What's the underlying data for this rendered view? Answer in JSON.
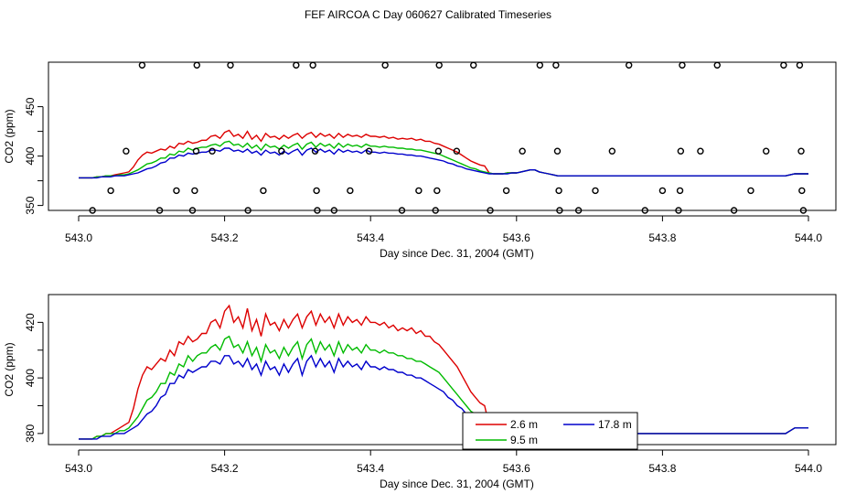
{
  "title": "FEF AIRCOA C  Day 060627  Calibrated Timeseries",
  "colors": {
    "series_2_6": "#dd0000",
    "series_9_5": "#00bb00",
    "series_17_8": "#0000cc",
    "axis": "#000000"
  },
  "chart_data": [
    {
      "type": "line",
      "title": "FEF AIRCOA C  Day 060627  Calibrated Timeseries",
      "xlabel": "Day since Dec. 31, 2004 (GMT)",
      "ylabel": "CO2 (ppm)",
      "xlim": [
        543.0,
        544.0
      ],
      "ylim": [
        345,
        495
      ],
      "xticks": [
        "543.0",
        "543.2",
        "543.4",
        "543.6",
        "543.8",
        "544.0"
      ],
      "yticks": [
        "350",
        "400",
        "450"
      ],
      "grid": false,
      "series": [
        {
          "name": "2.6 m",
          "color": "#dd0000",
          "x_start": 543.0,
          "x_step": 0.00625,
          "values": [
            378,
            378,
            378,
            378,
            379,
            379,
            380,
            380,
            381,
            382,
            383,
            384,
            389,
            396,
            401,
            404,
            403,
            405,
            407,
            406,
            410,
            408,
            413,
            412,
            415,
            413,
            414,
            416,
            416,
            420,
            421,
            418,
            424,
            426,
            420,
            422,
            418,
            425,
            417,
            421,
            415,
            423,
            419,
            420,
            417,
            421,
            418,
            421,
            423,
            418,
            422,
            424,
            419,
            423,
            420,
            422,
            418,
            423,
            419,
            422,
            420,
            421,
            419,
            422,
            420,
            420,
            419,
            420,
            418,
            419,
            417,
            418,
            417,
            418,
            416,
            417,
            415,
            415,
            413,
            412,
            410,
            408,
            406,
            404,
            401,
            398,
            395,
            393,
            391,
            390,
            383,
            382,
            382,
            382,
            383,
            383,
            383,
            384,
            385,
            386,
            386,
            384,
            383,
            382,
            381,
            380,
            380,
            380,
            380,
            380,
            380,
            380,
            380,
            380,
            380,
            380,
            380,
            380,
            380,
            380,
            380,
            380,
            380,
            380,
            380,
            380,
            380,
            380,
            380,
            380,
            380,
            380,
            380,
            380,
            380,
            380,
            380,
            380,
            380,
            380,
            380,
            380,
            380,
            380,
            380,
            380,
            380,
            380,
            380,
            380,
            380,
            380,
            380,
            380,
            380,
            380,
            381,
            382,
            382,
            382,
            382
          ]
        },
        {
          "name": "9.5 m",
          "color": "#00bb00",
          "x_start": 543.0,
          "x_step": 0.00625,
          "values": [
            378,
            378,
            378,
            378,
            379,
            379,
            380,
            380,
            380,
            381,
            381,
            382,
            384,
            386,
            389,
            392,
            393,
            395,
            398,
            398,
            402,
            401,
            405,
            404,
            408,
            406,
            408,
            409,
            409,
            411,
            412,
            410,
            414,
            415,
            411,
            412,
            409,
            413,
            408,
            411,
            406,
            412,
            409,
            410,
            407,
            411,
            408,
            411,
            413,
            407,
            412,
            414,
            409,
            413,
            410,
            412,
            408,
            413,
            409,
            412,
            410,
            411,
            409,
            412,
            410,
            410,
            409,
            410,
            409,
            409,
            408,
            408,
            407,
            407,
            406,
            406,
            405,
            404,
            403,
            402,
            400,
            398,
            396,
            394,
            392,
            390,
            388,
            387,
            385,
            384,
            383,
            382,
            382,
            382,
            383,
            383,
            383,
            384,
            385,
            386,
            386,
            384,
            383,
            382,
            381,
            380,
            380,
            380,
            380,
            380,
            380,
            380,
            380,
            380,
            380,
            380,
            380,
            380,
            380,
            380,
            380,
            380,
            380,
            380,
            380,
            380,
            380,
            380,
            380,
            380,
            380,
            380,
            380,
            380,
            380,
            380,
            380,
            380,
            380,
            380,
            380,
            380,
            380,
            380,
            380,
            380,
            380,
            380,
            380,
            380,
            380,
            380,
            380,
            380,
            380,
            380,
            381,
            382,
            382,
            382,
            382
          ]
        },
        {
          "name": "17.8 m",
          "color": "#0000cc",
          "x_start": 543.0,
          "x_step": 0.00625,
          "values": [
            378,
            378,
            378,
            378,
            378,
            379,
            379,
            379,
            380,
            380,
            380,
            381,
            382,
            383,
            385,
            387,
            388,
            390,
            393,
            394,
            398,
            398,
            401,
            400,
            403,
            402,
            403,
            404,
            404,
            406,
            406,
            405,
            408,
            408,
            405,
            406,
            404,
            407,
            403,
            405,
            401,
            406,
            403,
            404,
            401,
            405,
            402,
            405,
            407,
            401,
            406,
            408,
            404,
            407,
            404,
            406,
            402,
            407,
            404,
            406,
            404,
            405,
            403,
            406,
            404,
            404,
            403,
            404,
            403,
            403,
            402,
            402,
            401,
            401,
            400,
            400,
            399,
            398,
            397,
            396,
            395,
            393,
            392,
            390,
            389,
            387,
            386,
            385,
            384,
            383,
            382,
            382,
            382,
            382,
            382,
            383,
            383,
            384,
            385,
            386,
            386,
            384,
            383,
            382,
            381,
            380,
            380,
            380,
            380,
            380,
            380,
            380,
            380,
            380,
            380,
            380,
            380,
            380,
            380,
            380,
            380,
            380,
            380,
            380,
            380,
            380,
            380,
            380,
            380,
            380,
            380,
            380,
            380,
            380,
            380,
            380,
            380,
            380,
            380,
            380,
            380,
            380,
            380,
            380,
            380,
            380,
            380,
            380,
            380,
            380,
            380,
            380,
            380,
            380,
            380,
            380,
            381,
            382,
            382,
            382,
            382
          ]
        },
        {
          "name": "calibration points",
          "type": "scatter",
          "color": "#000000",
          "points": [
            [
              543.019,
              345
            ],
            [
              543.044,
              365
            ],
            [
              543.065,
              405
            ],
            [
              543.087,
              492
            ],
            [
              543.111,
              345
            ],
            [
              543.134,
              365
            ],
            [
              543.156,
              345
            ],
            [
              543.159,
              365
            ],
            [
              543.161,
              405
            ],
            [
              543.162,
              492
            ],
            [
              543.183,
              405
            ],
            [
              543.208,
              492
            ],
            [
              543.232,
              345
            ],
            [
              543.253,
              365
            ],
            [
              543.278,
              405
            ],
            [
              543.298,
              492
            ],
            [
              543.321,
              492
            ],
            [
              543.324,
              405
            ],
            [
              543.326,
              365
            ],
            [
              543.327,
              345
            ],
            [
              543.35,
              345
            ],
            [
              543.372,
              365
            ],
            [
              543.398,
              405
            ],
            [
              543.42,
              492
            ],
            [
              543.443,
              345
            ],
            [
              543.466,
              365
            ],
            [
              543.489,
              345
            ],
            [
              543.491,
              365
            ],
            [
              543.493,
              405
            ],
            [
              543.494,
              492
            ],
            [
              543.518,
              405
            ],
            [
              543.541,
              492
            ],
            [
              543.564,
              345
            ],
            [
              543.586,
              365
            ],
            [
              543.608,
              405
            ],
            [
              543.632,
              492
            ],
            [
              543.654,
              492
            ],
            [
              543.656,
              405
            ],
            [
              543.658,
              365
            ],
            [
              543.659,
              345
            ],
            [
              543.685,
              345
            ],
            [
              543.708,
              365
            ],
            [
              543.731,
              405
            ],
            [
              543.754,
              492
            ],
            [
              543.776,
              345
            ],
            [
              543.8,
              365
            ],
            [
              543.822,
              345
            ],
            [
              543.824,
              365
            ],
            [
              543.825,
              405
            ],
            [
              543.827,
              492
            ],
            [
              543.852,
              405
            ],
            [
              543.875,
              492
            ],
            [
              543.898,
              345
            ],
            [
              543.921,
              365
            ],
            [
              543.942,
              405
            ],
            [
              543.966,
              492
            ],
            [
              543.988,
              492
            ],
            [
              543.99,
              405
            ],
            [
              543.991,
              365
            ],
            [
              543.993,
              345
            ]
          ]
        }
      ]
    },
    {
      "type": "line",
      "xlabel": "Day since Dec. 31, 2004 (GMT)",
      "ylabel": "CO2 (ppm)",
      "xlim": [
        543.0,
        544.0
      ],
      "ylim": [
        376,
        430
      ],
      "xticks": [
        "543.0",
        "543.2",
        "543.4",
        "543.6",
        "543.8",
        "544.0"
      ],
      "yticks": [
        "380",
        "400",
        "420"
      ],
      "grid": false,
      "legend": {
        "placement": "bottom-center",
        "entries": [
          "2.6 m",
          "9.5 m",
          "17.8 m"
        ]
      },
      "series_ref": "same three series as panel 1 (2.6 m, 9.5 m, 17.8 m)"
    }
  ]
}
